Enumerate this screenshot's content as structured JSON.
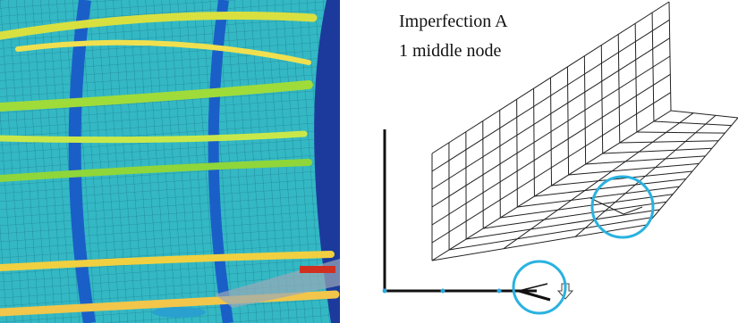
{
  "caption": {
    "title": "Imperfection A",
    "subtitle": "1 middle node"
  }
}
